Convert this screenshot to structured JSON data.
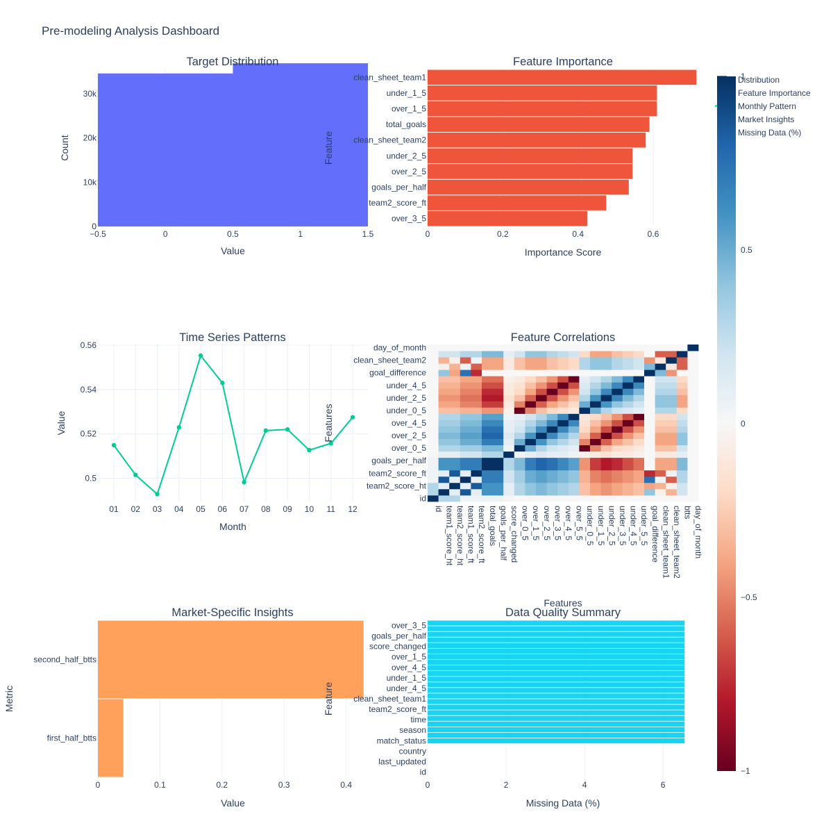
{
  "title": "Pre-modeling Analysis Dashboard",
  "legend": {
    "items": [
      {
        "label": "Distribution",
        "color": "#636efa",
        "mark": "bar"
      },
      {
        "label": "Feature Importance",
        "color": "#ef553b",
        "mark": "bar"
      },
      {
        "label": "Monthly Pattern",
        "color": "#00cc96",
        "mark": "line"
      },
      {
        "label": "Market Insights",
        "color": "#ffa15a",
        "mark": "bar"
      },
      {
        "label": "Missing Data (%)",
        "color": "#19d3f3",
        "mark": "bar"
      }
    ]
  },
  "colorbar": {
    "ticks": [
      "1",
      "0.5",
      "0",
      "−0.5",
      "−1"
    ],
    "values": [
      1,
      0.5,
      0,
      -0.5,
      -1
    ],
    "colorscale": [
      "#67001f",
      "#b2182b",
      "#d6604d",
      "#f4a582",
      "#fddbc7",
      "#f7f7f7",
      "#d1e5f0",
      "#92c5de",
      "#4393c3",
      "#2166ac",
      "#053061"
    ]
  },
  "chart_data": [
    {
      "id": "target",
      "type": "bar",
      "title": "Target Distribution",
      "xlabel": "Value",
      "ylabel": "Count",
      "xlim": [
        -0.5,
        1.5
      ],
      "ylim": [
        0,
        35500
      ],
      "xticks": [
        -0.5,
        0,
        0.5,
        1,
        1.5
      ],
      "xtick_labels": [
        "−0.5",
        "0",
        "0.5",
        "1",
        "1.5"
      ],
      "yticks": [
        0,
        10000,
        20000,
        30000
      ],
      "ytick_labels": [
        "0",
        "10k",
        "20k",
        "30k"
      ],
      "color": "#636efa",
      "categories": [
        0,
        1
      ],
      "values": [
        34600,
        36900
      ]
    },
    {
      "id": "importance",
      "type": "bar",
      "orientation": "h",
      "title": "Feature Importance",
      "xlabel": "Importance Score",
      "ylabel": "Feature",
      "xlim": [
        0,
        0.72
      ],
      "xticks": [
        0,
        0.2,
        0.4,
        0.6
      ],
      "xtick_labels": [
        "0",
        "0.2",
        "0.4",
        "0.6"
      ],
      "color": "#ef553b",
      "categories": [
        "clean_sheet_team1",
        "under_1_5",
        "over_1_5",
        "total_goals",
        "clean_sheet_team2",
        "under_2_5",
        "over_2_5",
        "goals_per_half",
        "team2_score_ft",
        "over_3_5"
      ],
      "values": [
        0.715,
        0.61,
        0.61,
        0.59,
        0.58,
        0.545,
        0.545,
        0.535,
        0.475,
        0.425
      ]
    },
    {
      "id": "monthly",
      "type": "line",
      "title": "Time Series Patterns",
      "xlabel": "Month",
      "ylabel": "Value",
      "ylim": [
        0.4895,
        0.5603
      ],
      "yticks": [
        0.5,
        0.52,
        0.54,
        0.56
      ],
      "ytick_labels": [
        "0.5",
        "0.52",
        "0.54",
        "0.56"
      ],
      "color": "#00cc96",
      "categories": [
        "01",
        "02",
        "03",
        "04",
        "05",
        "06",
        "07",
        "08",
        "09",
        "10",
        "11",
        "12"
      ],
      "values": [
        0.5149,
        0.5015,
        0.4928,
        0.5229,
        0.5553,
        0.543,
        0.4982,
        0.5215,
        0.522,
        0.5127,
        0.5157,
        0.5275
      ]
    },
    {
      "id": "correlations",
      "type": "heatmap",
      "title": "Feature Correlations",
      "xlabel": "Features",
      "ylabel": "Features",
      "zlim": [
        -1,
        1
      ],
      "labels": [
        "id",
        "team1_score_ht",
        "team2_score_ht",
        "team1_score_ft",
        "team2_score_ft",
        "total_goals",
        "goals_per_half",
        "score_changed",
        "over_0_5",
        "over_1_5",
        "over_2_5",
        "over_3_5",
        "over_4_5",
        "over_5_5",
        "under_0_5",
        "under_1_5",
        "under_2_5",
        "under_3_5",
        "under_4_5",
        "under_5_5",
        "goal_difference",
        "clean_sheet_team1",
        "clean_sheet_team2",
        "btts",
        "day_of_month"
      ],
      "yticks_shown": [
        "day_of_month",
        "clean_sheet_team2",
        "goal_difference",
        "under_4_5",
        "under_2_5",
        "under_0_5",
        "over_4_5",
        "over_2_5",
        "over_0_5",
        "goals_per_half",
        "team2_score_ft",
        "team2_score_ht",
        "id"
      ],
      "matrix": [
        [
          1.0,
          0.3,
          0.3,
          0.05,
          0.05,
          0.05,
          0.05,
          0.02,
          0.0,
          0.0,
          0.0,
          0.0,
          0.0,
          0.0,
          0.0,
          0.0,
          0.0,
          0.0,
          0.0,
          0.0,
          0.0,
          0.0,
          0.0,
          0.0,
          0.0
        ],
        [
          0.3,
          1.0,
          0.1,
          0.85,
          0.1,
          0.6,
          0.6,
          0.1,
          0.3,
          0.4,
          0.45,
          0.4,
          0.35,
          0.3,
          -0.3,
          -0.4,
          -0.45,
          -0.4,
          -0.35,
          -0.3,
          0.4,
          -0.05,
          -0.35,
          0.2,
          0.0
        ],
        [
          0.3,
          0.1,
          1.0,
          0.1,
          0.85,
          0.6,
          0.6,
          0.1,
          0.3,
          0.4,
          0.45,
          0.4,
          0.35,
          0.3,
          -0.3,
          -0.4,
          -0.45,
          -0.4,
          -0.35,
          -0.3,
          -0.4,
          -0.35,
          -0.05,
          0.2,
          0.0
        ],
        [
          0.05,
          0.85,
          0.1,
          1.0,
          0.1,
          0.7,
          0.7,
          0.2,
          0.35,
          0.5,
          0.55,
          0.5,
          0.45,
          0.4,
          -0.35,
          -0.5,
          -0.55,
          -0.5,
          -0.45,
          -0.4,
          0.75,
          0.05,
          -0.6,
          0.3,
          0.0
        ],
        [
          0.05,
          0.1,
          0.85,
          0.1,
          1.0,
          0.7,
          0.7,
          0.2,
          0.35,
          0.5,
          0.55,
          0.5,
          0.45,
          0.4,
          -0.35,
          -0.5,
          -0.55,
          -0.5,
          -0.45,
          -0.4,
          -0.75,
          -0.6,
          0.05,
          0.3,
          0.0
        ],
        [
          0.05,
          0.6,
          0.6,
          0.7,
          0.7,
          1.0,
          1.0,
          0.3,
          0.45,
          0.7,
          0.8,
          0.75,
          0.65,
          0.55,
          -0.45,
          -0.7,
          -0.8,
          -0.75,
          -0.65,
          -0.55,
          0.0,
          -0.4,
          -0.4,
          0.45,
          0.0
        ],
        [
          0.05,
          0.6,
          0.6,
          0.7,
          0.7,
          1.0,
          1.0,
          0.3,
          0.45,
          0.7,
          0.8,
          0.75,
          0.65,
          0.55,
          -0.45,
          -0.7,
          -0.8,
          -0.75,
          -0.65,
          -0.55,
          0.0,
          -0.4,
          -0.4,
          0.45,
          0.0
        ],
        [
          0.02,
          0.1,
          0.1,
          0.2,
          0.2,
          0.3,
          0.3,
          1.0,
          0.05,
          0.1,
          0.15,
          0.1,
          0.1,
          0.05,
          -0.05,
          -0.1,
          -0.15,
          -0.1,
          -0.1,
          -0.05,
          0.0,
          -0.1,
          -0.1,
          0.1,
          0.0
        ],
        [
          0.0,
          0.3,
          0.3,
          0.35,
          0.35,
          0.45,
          0.45,
          0.05,
          1.0,
          0.5,
          0.3,
          0.2,
          0.15,
          0.1,
          -1.0,
          -0.5,
          -0.3,
          -0.2,
          -0.15,
          -0.1,
          0.0,
          -0.3,
          -0.3,
          0.2,
          0.0
        ],
        [
          0.0,
          0.4,
          0.4,
          0.5,
          0.5,
          0.7,
          0.7,
          0.1,
          0.5,
          1.0,
          0.6,
          0.4,
          0.3,
          0.2,
          -0.5,
          -1.0,
          -0.6,
          -0.4,
          -0.3,
          -0.2,
          0.0,
          -0.4,
          -0.4,
          0.4,
          0.0
        ],
        [
          0.0,
          0.45,
          0.45,
          0.55,
          0.55,
          0.8,
          0.8,
          0.15,
          0.3,
          0.6,
          1.0,
          0.65,
          0.45,
          0.3,
          -0.3,
          -0.6,
          -1.0,
          -0.65,
          -0.45,
          -0.3,
          0.0,
          -0.4,
          -0.4,
          0.4,
          0.0
        ],
        [
          0.0,
          0.4,
          0.4,
          0.5,
          0.5,
          0.75,
          0.75,
          0.1,
          0.2,
          0.4,
          0.65,
          1.0,
          0.65,
          0.45,
          -0.2,
          -0.4,
          -0.65,
          -1.0,
          -0.65,
          -0.45,
          0.0,
          -0.3,
          -0.3,
          0.3,
          0.0
        ],
        [
          0.0,
          0.35,
          0.35,
          0.45,
          0.45,
          0.65,
          0.65,
          0.1,
          0.15,
          0.3,
          0.45,
          0.65,
          1.0,
          0.65,
          -0.15,
          -0.3,
          -0.45,
          -0.65,
          -1.0,
          -0.65,
          0.0,
          -0.25,
          -0.25,
          0.25,
          0.0
        ],
        [
          0.0,
          0.3,
          0.3,
          0.4,
          0.4,
          0.55,
          0.55,
          0.05,
          0.1,
          0.2,
          0.3,
          0.45,
          0.65,
          1.0,
          -0.1,
          -0.2,
          -0.3,
          -0.45,
          -0.65,
          -1.0,
          0.0,
          -0.2,
          -0.2,
          0.2,
          0.0
        ],
        [
          0.0,
          -0.3,
          -0.3,
          -0.35,
          -0.35,
          -0.45,
          -0.45,
          -0.05,
          -1.0,
          -0.5,
          -0.3,
          -0.2,
          -0.15,
          -0.1,
          1.0,
          0.5,
          0.3,
          0.2,
          0.15,
          0.1,
          0.0,
          0.3,
          0.3,
          -0.2,
          0.0
        ],
        [
          0.0,
          -0.4,
          -0.4,
          -0.5,
          -0.5,
          -0.7,
          -0.7,
          -0.1,
          -0.5,
          -1.0,
          -0.6,
          -0.4,
          -0.3,
          -0.2,
          0.5,
          1.0,
          0.6,
          0.4,
          0.3,
          0.2,
          0.0,
          0.4,
          0.4,
          -0.4,
          0.0
        ],
        [
          0.0,
          -0.45,
          -0.45,
          -0.55,
          -0.55,
          -0.8,
          -0.8,
          -0.15,
          -0.3,
          -0.6,
          -1.0,
          -0.65,
          -0.45,
          -0.3,
          0.3,
          0.6,
          1.0,
          0.65,
          0.45,
          0.3,
          0.0,
          0.4,
          0.4,
          -0.4,
          0.0
        ],
        [
          0.0,
          -0.4,
          -0.4,
          -0.5,
          -0.5,
          -0.75,
          -0.75,
          -0.1,
          -0.2,
          -0.4,
          -0.65,
          -1.0,
          -0.65,
          -0.45,
          0.2,
          0.4,
          0.65,
          1.0,
          0.65,
          0.45,
          0.0,
          0.3,
          0.3,
          -0.3,
          0.0
        ],
        [
          0.0,
          -0.35,
          -0.35,
          -0.45,
          -0.45,
          -0.65,
          -0.65,
          -0.1,
          -0.15,
          -0.3,
          -0.45,
          -0.65,
          -1.0,
          -0.65,
          0.15,
          0.3,
          0.45,
          0.65,
          1.0,
          0.65,
          0.0,
          0.25,
          0.25,
          -0.25,
          0.0
        ],
        [
          0.0,
          -0.3,
          -0.3,
          -0.4,
          -0.4,
          -0.55,
          -0.55,
          -0.05,
          -0.1,
          -0.2,
          -0.3,
          -0.45,
          -0.65,
          -1.0,
          0.1,
          0.2,
          0.3,
          0.45,
          0.65,
          1.0,
          0.0,
          0.2,
          0.2,
          -0.2,
          0.0
        ],
        [
          0.0,
          0.4,
          -0.4,
          0.75,
          -0.75,
          0.0,
          0.0,
          0.0,
          0.0,
          0.0,
          0.0,
          0.0,
          0.0,
          0.0,
          0.0,
          0.0,
          0.0,
          0.0,
          0.0,
          0.0,
          1.0,
          0.45,
          -0.45,
          0.0,
          0.0
        ],
        [
          0.0,
          -0.05,
          -0.35,
          0.05,
          -0.6,
          -0.4,
          -0.4,
          -0.1,
          -0.3,
          -0.4,
          -0.4,
          -0.3,
          -0.25,
          -0.2,
          0.3,
          0.4,
          0.4,
          0.3,
          0.25,
          0.2,
          0.45,
          1.0,
          -0.1,
          -0.6,
          0.0
        ],
        [
          0.0,
          -0.35,
          -0.05,
          -0.6,
          0.05,
          -0.4,
          -0.4,
          -0.1,
          -0.3,
          -0.4,
          -0.4,
          -0.3,
          -0.25,
          -0.2,
          0.3,
          0.4,
          0.4,
          0.3,
          0.25,
          0.2,
          -0.45,
          -0.1,
          1.0,
          -0.6,
          0.0
        ],
        [
          0.0,
          0.2,
          0.2,
          0.3,
          0.3,
          0.45,
          0.45,
          0.1,
          0.2,
          0.4,
          0.4,
          0.3,
          0.25,
          0.2,
          -0.2,
          -0.4,
          -0.4,
          -0.3,
          -0.25,
          -0.2,
          0.0,
          -0.6,
          -0.6,
          1.0,
          0.0
        ],
        [
          0.0,
          0.0,
          0.0,
          0.0,
          0.0,
          0.0,
          0.0,
          0.0,
          0.0,
          0.0,
          0.0,
          0.0,
          0.0,
          0.0,
          0.0,
          0.0,
          0.0,
          0.0,
          0.0,
          0.0,
          0.0,
          0.0,
          0.0,
          0.0,
          1.0
        ]
      ]
    },
    {
      "id": "market",
      "type": "bar",
      "orientation": "h",
      "title": "Market-Specific Insights",
      "xlabel": "Value",
      "ylabel": "Metric",
      "xlim": [
        0,
        0.435
      ],
      "xticks": [
        0,
        0.1,
        0.2,
        0.3,
        0.4
      ],
      "xtick_labels": [
        "0",
        "0.1",
        "0.2",
        "0.3",
        "0.4"
      ],
      "color": "#ffa15a",
      "categories": [
        "second_half_btts",
        "first_half_btts"
      ],
      "values": [
        0.428,
        0.041
      ]
    },
    {
      "id": "quality",
      "type": "bar",
      "orientation": "h",
      "title": "Data Quality Summary",
      "xlabel": "Missing Data (%)",
      "ylabel": "Feature",
      "xlim": [
        0,
        6.9
      ],
      "xticks": [
        0,
        2,
        4,
        6
      ],
      "xtick_labels": [
        "0",
        "2",
        "4",
        "6"
      ],
      "color": "#19d3f3",
      "categories": [
        "over_3_5",
        "goals_per_half",
        "score_changed",
        "over_1_5",
        "over_4_5",
        "under_1_5",
        "under_4_5",
        "clean_sheet_team1",
        "team2_score_ft",
        "time",
        "season",
        "match_status",
        "country",
        "last_updated",
        "id"
      ],
      "tick_labels_shown": [
        "over_3_5",
        "goals_per_half",
        "score_changed",
        "over_1_5",
        "over_4_5",
        "under_1_5",
        "under_4_5",
        "clean_sheet_team1",
        "team2_score_ft",
        "time",
        "season",
        "match_status",
        "country",
        "last_updated",
        "id"
      ],
      "bar_count": 22,
      "bar_value": 6.55,
      "zero_rows": 6
    }
  ]
}
